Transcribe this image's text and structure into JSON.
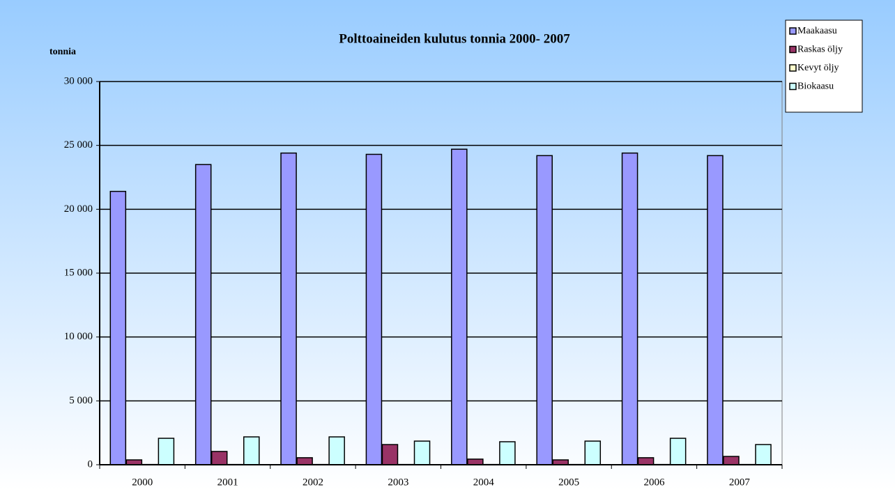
{
  "chart_data": {
    "type": "bar",
    "title": "Polttoaineiden kulutus tonnia  2000- 2007",
    "y_label": "tonnia",
    "categories": [
      "2000",
      "2001",
      "2002",
      "2003",
      "2004",
      "2005",
      "2006",
      "2007"
    ],
    "series": [
      {
        "name": "Maakaasu",
        "color": "#9999ff",
        "values": [
          21400,
          23500,
          24400,
          24300,
          24700,
          24200,
          24400,
          24200
        ]
      },
      {
        "name": "Raskas öljy",
        "color": "#993366",
        "values": [
          380,
          1040,
          550,
          1580,
          440,
          380,
          550,
          650
        ]
      },
      {
        "name": "Kevyt öljy",
        "color": "#ffffcc",
        "values": [
          20,
          20,
          20,
          20,
          20,
          20,
          20,
          20
        ]
      },
      {
        "name": "Biokaasu",
        "color": "#ccffff",
        "values": [
          2070,
          2180,
          2180,
          1850,
          1800,
          1850,
          2070,
          1580
        ]
      }
    ],
    "ylim": [
      0,
      30000
    ],
    "yticks": [
      0,
      {
        "value": 5000,
        "label": "5 000"
      },
      {
        "value": 10000,
        "label": "10 000"
      },
      {
        "value": 15000,
        "label": "15 000"
      },
      {
        "value": 20000,
        "label": "20 000"
      },
      {
        "value": 25000,
        "label": "25 000"
      },
      {
        "value": 30000,
        "label": "30 000"
      }
    ],
    "grid": true,
    "legend": "top-right"
  }
}
